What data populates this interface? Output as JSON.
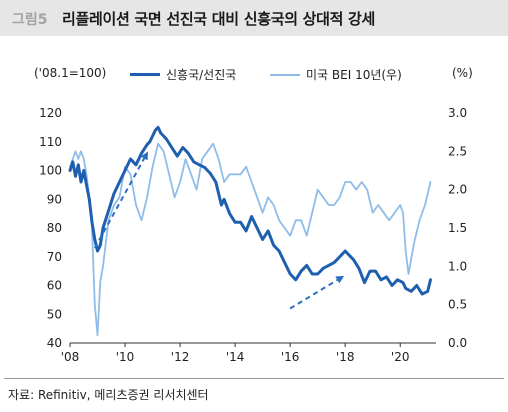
{
  "header": {
    "figure_no": "그림5",
    "title": "리플레이션 국면 선진국 대비 신흥국의 상대적 강세"
  },
  "source": "자료: Refinitiv, 메리츠증권 리서치센터",
  "chart_data": {
    "type": "line",
    "left_unit": "('08.1=100)",
    "right_unit": "(%)",
    "xticks": [
      "'08",
      "'10",
      "'12",
      "'14",
      "'16",
      "'18",
      "'20"
    ],
    "xlim": [
      2008,
      2021.3
    ],
    "y_left": {
      "min": 40,
      "max": 120,
      "ticks": [
        "40",
        "50",
        "60",
        "70",
        "80",
        "90",
        "100",
        "110",
        "120"
      ]
    },
    "y_right": {
      "min": 0,
      "max": 3,
      "ticks": [
        "0.0",
        "0.5",
        "1.0",
        "1.5",
        "2.0",
        "2.5",
        "3.0"
      ]
    },
    "colors": {
      "em_dm": "#1f5fb0",
      "bei": "#8fbde8"
    },
    "series": [
      {
        "name": "신흥국/선진국",
        "axis": "left",
        "x": [
          2008.0,
          2008.1,
          2008.2,
          2008.3,
          2008.4,
          2008.5,
          2008.6,
          2008.7,
          2008.8,
          2008.9,
          2009.0,
          2009.1,
          2009.2,
          2009.4,
          2009.6,
          2009.8,
          2010.0,
          2010.2,
          2010.4,
          2010.6,
          2010.8,
          2010.9,
          2011.0,
          2011.1,
          2011.2,
          2011.3,
          2011.5,
          2011.7,
          2011.9,
          2012.1,
          2012.3,
          2012.5,
          2012.7,
          2012.9,
          2013.1,
          2013.3,
          2013.4,
          2013.5,
          2013.6,
          2013.8,
          2014.0,
          2014.2,
          2014.4,
          2014.6,
          2014.8,
          2015.0,
          2015.2,
          2015.4,
          2015.6,
          2015.8,
          2016.0,
          2016.2,
          2016.4,
          2016.6,
          2016.8,
          2017.0,
          2017.2,
          2017.4,
          2017.6,
          2017.8,
          2018.0,
          2018.1,
          2018.3,
          2018.5,
          2018.7,
          2018.9,
          2019.1,
          2019.3,
          2019.5,
          2019.7,
          2019.9,
          2020.1,
          2020.2,
          2020.4,
          2020.6,
          2020.8,
          2021.0,
          2021.1
        ],
        "values": [
          100,
          103,
          98,
          102,
          96,
          100,
          95,
          90,
          82,
          76,
          72,
          74,
          80,
          86,
          92,
          96,
          100,
          104,
          102,
          106,
          109,
          110,
          112,
          114,
          115,
          113,
          111,
          108,
          105,
          108,
          106,
          103,
          102,
          101,
          99,
          96,
          92,
          88,
          90,
          85,
          82,
          82,
          79,
          84,
          80,
          76,
          79,
          74,
          72,
          68,
          64,
          62,
          65,
          67,
          64,
          64,
          66,
          67,
          68,
          70,
          72,
          71,
          69,
          66,
          61,
          65,
          65,
          62,
          63,
          60,
          62,
          61,
          59,
          58,
          60,
          57,
          58,
          62
        ]
      },
      {
        "name": "미국 BEI 10년(우)",
        "axis": "right",
        "x": [
          2008.0,
          2008.1,
          2008.2,
          2008.3,
          2008.4,
          2008.5,
          2008.6,
          2008.7,
          2008.8,
          2008.9,
          2009.0,
          2009.1,
          2009.2,
          2009.4,
          2009.6,
          2009.8,
          2010.0,
          2010.2,
          2010.4,
          2010.6,
          2010.8,
          2011.0,
          2011.2,
          2011.4,
          2011.6,
          2011.8,
          2012.0,
          2012.2,
          2012.4,
          2012.6,
          2012.8,
          2013.0,
          2013.2,
          2013.4,
          2013.6,
          2013.8,
          2014.0,
          2014.2,
          2014.4,
          2014.6,
          2014.8,
          2015.0,
          2015.2,
          2015.4,
          2015.6,
          2015.8,
          2016.0,
          2016.2,
          2016.4,
          2016.6,
          2016.8,
          2017.0,
          2017.2,
          2017.4,
          2017.6,
          2017.8,
          2018.0,
          2018.2,
          2018.4,
          2018.6,
          2018.8,
          2019.0,
          2019.2,
          2019.4,
          2019.6,
          2019.8,
          2020.0,
          2020.1,
          2020.2,
          2020.3,
          2020.5,
          2020.7,
          2020.9,
          2021.1
        ],
        "values": [
          2.3,
          2.4,
          2.5,
          2.4,
          2.5,
          2.4,
          2.2,
          1.9,
          1.5,
          0.5,
          0.1,
          0.8,
          1.0,
          1.6,
          1.8,
          1.9,
          2.3,
          2.2,
          1.8,
          1.6,
          1.9,
          2.3,
          2.6,
          2.5,
          2.2,
          1.9,
          2.1,
          2.4,
          2.2,
          2.0,
          2.4,
          2.5,
          2.6,
          2.4,
          2.1,
          2.2,
          2.2,
          2.2,
          2.3,
          2.1,
          1.9,
          1.7,
          1.9,
          1.8,
          1.6,
          1.5,
          1.4,
          1.6,
          1.6,
          1.4,
          1.7,
          2.0,
          1.9,
          1.8,
          1.8,
          1.9,
          2.1,
          2.1,
          2.0,
          2.1,
          2.0,
          1.7,
          1.8,
          1.7,
          1.6,
          1.7,
          1.8,
          1.7,
          1.2,
          0.9,
          1.3,
          1.6,
          1.8,
          2.1
        ]
      }
    ],
    "annotations": [
      {
        "type": "arrow",
        "x1": 2008.9,
        "y1": 73,
        "x2": 2010.8,
        "y2": 106
      },
      {
        "type": "arrow",
        "x1": 2016.0,
        "y1": 52,
        "x2": 2017.9,
        "y2": 63
      }
    ]
  }
}
